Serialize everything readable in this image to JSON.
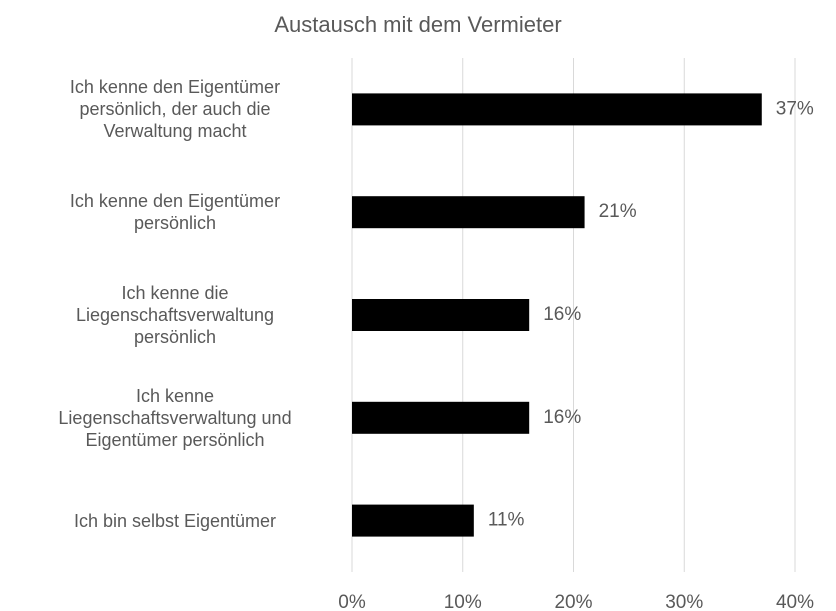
{
  "chart_data": {
    "type": "bar",
    "orientation": "horizontal",
    "title": "Austausch mit dem Vermieter",
    "categories": [
      "Ich kenne den Eigentümer\npersönlich, der auch die\nVerwaltung macht",
      "Ich kenne den Eigentümer\npersönlich",
      "Ich kenne die\nLiegenschaftsverwaltung\npersönlich",
      "Ich kenne\nLiegenschaftsverwaltung und\nEigentümer persönlich",
      "Ich bin selbst Eigentümer"
    ],
    "values": [
      37,
      21,
      16,
      16,
      11
    ],
    "value_labels": [
      "37%",
      "21%",
      "16%",
      "16%",
      "11%"
    ],
    "color": "#000000",
    "xlim": [
      0,
      40
    ],
    "xticks": [
      {
        "value": 0,
        "label": "0%"
      },
      {
        "value": 10,
        "label": "10%"
      },
      {
        "value": 20,
        "label": "20%"
      },
      {
        "value": 30,
        "label": "30%"
      },
      {
        "value": 40,
        "label": "40%"
      }
    ],
    "grid": true
  }
}
